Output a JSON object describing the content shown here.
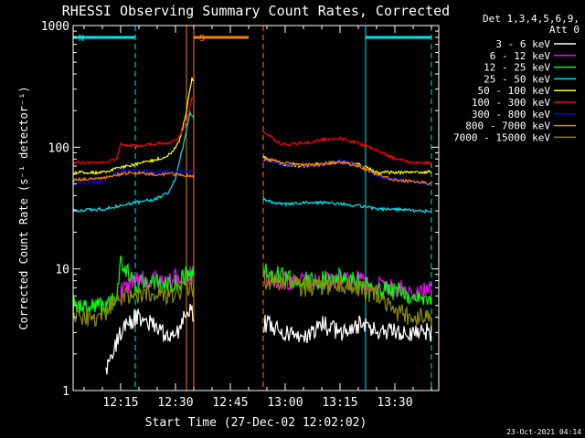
{
  "chart_data": {
    "type": "line",
    "title": "RHESSI Observing Summary Count Rates, Corrected",
    "xlabel": "Start Time (27-Dec-02 12:02:02)",
    "ylabel": "Corrected Count Rate (s⁻¹ detector⁻¹)",
    "footer": "23-Oct-2021 04:14",
    "y_scale": "log",
    "ylim": [
      1,
      1000
    ],
    "xlim": [
      "12:02",
      "13:42"
    ],
    "x_ticks": [
      "12:15",
      "12:30",
      "12:45",
      "13:00",
      "13:15",
      "13:30"
    ],
    "y_ticks": [
      "1",
      "10",
      "100",
      "1000"
    ],
    "legend_header": [
      "Det 1,3,4,5,6,9,",
      "Att 0"
    ],
    "legend_position": "right",
    "data_gap": [
      "12:35",
      "12:54"
    ],
    "flags": [
      {
        "label": "N",
        "start": "12:02",
        "end": "12:19",
        "color": "#00e5ee"
      },
      {
        "label": "S",
        "start": "12:35",
        "end": "12:50",
        "color": "#ff7f00"
      },
      {
        "label": "",
        "start": "13:22",
        "end": "13:40",
        "color": "#00e5ee"
      }
    ],
    "markers": [
      {
        "time": "12:02",
        "color": "#00e5ee",
        "style": "solid"
      },
      {
        "time": "12:19",
        "color": "#00e5ee",
        "style": "dashed"
      },
      {
        "time": "12:33",
        "color": "#ff7f00",
        "style": "solid"
      },
      {
        "time": "12:35",
        "color": "#ff7f00",
        "style": "solid"
      },
      {
        "time": "12:54",
        "color": "#ff7f00",
        "style": "dashed"
      },
      {
        "time": "13:22",
        "color": "#00e5ee",
        "style": "solid"
      },
      {
        "time": "13:40",
        "color": "#00e5ee",
        "style": "dashed"
      }
    ],
    "series": [
      {
        "name": "3 - 6 keV",
        "color": "#ffffff",
        "x": [
          "12:11",
          "12:15",
          "12:19",
          "12:24",
          "12:28",
          "12:31",
          "12:33",
          "12:55",
          "13:00",
          "13:05",
          "13:10",
          "13:15",
          "13:20",
          "13:25",
          "13:30",
          "13:35",
          "13:40"
        ],
        "y": [
          1.5,
          3.0,
          4.0,
          3.5,
          2.8,
          3.0,
          4.5,
          3.5,
          3.0,
          2.8,
          3.5,
          3.0,
          3.5,
          3.0,
          3.0,
          3.0,
          3.0
        ]
      },
      {
        "name": "6 - 12 keV",
        "color": "#ff00ff",
        "x": [
          "12:15",
          "12:19",
          "12:24",
          "12:28",
          "12:31",
          "12:33",
          "12:55",
          "13:00",
          "13:05",
          "13:10",
          "13:15",
          "13:20",
          "13:25",
          "13:30",
          "13:35",
          "13:40"
        ],
        "y": [
          6.5,
          8.5,
          8.0,
          8.0,
          8.5,
          9.0,
          8.5,
          8.0,
          8.0,
          8.0,
          8.0,
          8.0,
          7.5,
          7.0,
          6.5,
          6.5
        ]
      },
      {
        "name": "12 - 25 keV",
        "color": "#00ff00",
        "x": [
          "12:02",
          "12:10",
          "12:14",
          "12:15",
          "12:19",
          "12:24",
          "12:28",
          "12:31",
          "12:33",
          "12:55",
          "13:00",
          "13:05",
          "13:10",
          "13:15",
          "13:20",
          "13:25",
          "13:30",
          "13:35",
          "13:40"
        ],
        "y": [
          5.0,
          5.0,
          5.5,
          11,
          7.5,
          8.0,
          7.5,
          7.5,
          9.0,
          9.5,
          8.5,
          8.0,
          8.0,
          8.5,
          8.0,
          7.0,
          6.5,
          6.0,
          5.5
        ]
      },
      {
        "name": "25 - 50 keV",
        "color": "#00e5ee",
        "x": [
          "12:02",
          "12:10",
          "12:15",
          "12:19",
          "12:24",
          "12:28",
          "12:30",
          "12:32",
          "12:34",
          "12:55",
          "13:00",
          "13:05",
          "13:10",
          "13:15",
          "13:20",
          "13:25",
          "13:30",
          "13:35",
          "13:40"
        ],
        "y": [
          30,
          31,
          33,
          35,
          37,
          42,
          55,
          100,
          190,
          36,
          34,
          35,
          35,
          34,
          33,
          31,
          31,
          30,
          30
        ]
      },
      {
        "name": "50 - 100 keV",
        "color": "#ffff00",
        "x": [
          "12:02",
          "12:10",
          "12:15",
          "12:19",
          "12:24",
          "12:28",
          "12:31",
          "12:33",
          "12:34.5",
          "12:55",
          "13:00",
          "13:05",
          "13:10",
          "13:15",
          "13:20",
          "13:25",
          "13:30",
          "13:35",
          "13:40"
        ],
        "y": [
          62,
          62,
          68,
          72,
          78,
          85,
          110,
          200,
          370,
          80,
          72,
          70,
          73,
          76,
          73,
          62,
          62,
          62,
          63
        ]
      },
      {
        "name": "100 - 300 keV",
        "color": "#ff0000",
        "x": [
          "12:02",
          "12:10",
          "12:14",
          "12:15",
          "12:19",
          "12:24",
          "12:28",
          "12:31",
          "12:33",
          "12:34.5",
          "12:55",
          "12:58",
          "13:00",
          "13:05",
          "13:10",
          "13:15",
          "13:20",
          "13:25",
          "13:30",
          "13:35",
          "13:40"
        ],
        "y": [
          75,
          74,
          80,
          105,
          102,
          106,
          108,
          120,
          160,
          260,
          130,
          110,
          106,
          108,
          115,
          118,
          108,
          95,
          80,
          75,
          74
        ]
      },
      {
        "name": "300 - 800 keV",
        "color": "#0000ff",
        "x": [
          "12:02",
          "12:10",
          "12:15",
          "12:19",
          "12:24",
          "12:28",
          "12:31",
          "12:34",
          "12:55",
          "13:00",
          "13:05",
          "13:10",
          "13:15",
          "13:20",
          "13:25",
          "13:30",
          "13:35",
          "13:40"
        ],
        "y": [
          50,
          52,
          65,
          65,
          63,
          63,
          63,
          62,
          78,
          72,
          70,
          72,
          77,
          72,
          58,
          55,
          52,
          50
        ]
      },
      {
        "name": "800 - 7000 keV",
        "color": "#ff7f00",
        "x": [
          "12:02",
          "12:10",
          "12:15",
          "12:19",
          "12:24",
          "12:28",
          "12:31",
          "12:34",
          "12:55",
          "13:00",
          "13:05",
          "13:10",
          "13:15",
          "13:20",
          "13:25",
          "13:30",
          "13:35",
          "13:40"
        ],
        "y": [
          54,
          56,
          60,
          62,
          60,
          60,
          60,
          58,
          80,
          74,
          72,
          72,
          76,
          70,
          60,
          54,
          52,
          50
        ]
      },
      {
        "name": "7000 - 15000 keV",
        "color": "#8b8b00",
        "x": [
          "12:02",
          "12:10",
          "12:14",
          "12:19",
          "12:24",
          "12:28",
          "12:31",
          "12:33",
          "12:55",
          "13:00",
          "13:05",
          "13:10",
          "13:15",
          "13:20",
          "13:25",
          "13:30",
          "13:35",
          "13:40"
        ],
        "y": [
          4.0,
          4.0,
          6.0,
          6.0,
          6.5,
          6.0,
          6.5,
          7.0,
          8.0,
          7.5,
          7.0,
          7.0,
          7.5,
          7.0,
          6.0,
          4.5,
          4.0,
          4.0
        ]
      }
    ]
  }
}
